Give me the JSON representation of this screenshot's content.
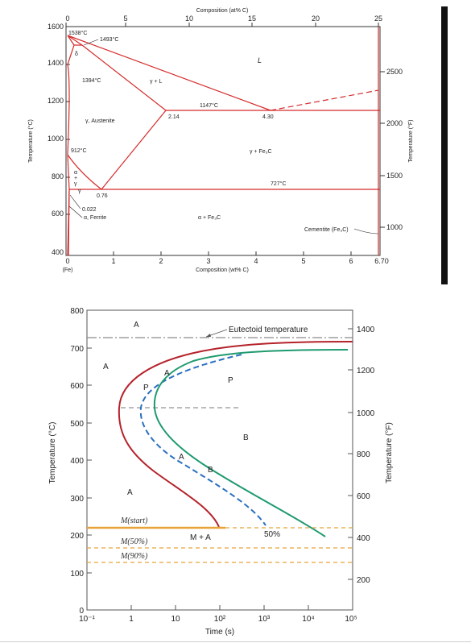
{
  "phase_diagram": {
    "top_axis_title": "Composition (at% C)",
    "top_ticks": [
      "0",
      "5",
      "10",
      "15",
      "20",
      "25"
    ],
    "bottom_axis_title": "Composition (wt% C)",
    "bottom_ticks": [
      "0",
      "1",
      "2",
      "3",
      "4",
      "5",
      "6",
      "6.70"
    ],
    "fe_label": "(Fe)",
    "left_axis_title": "Temperature (°C)",
    "left_ticks": [
      "1600",
      "1400",
      "1200",
      "1000",
      "800",
      "600",
      "400"
    ],
    "right_axis_title": "Temperature (°F)",
    "right_ticks": [
      "2500",
      "2000",
      "1500",
      "1000"
    ],
    "temp_labels": {
      "t1538": "1538°C",
      "t1493": "1493°C",
      "t1394": "1394°C",
      "t1147": "1147°C",
      "t912": "912°C",
      "t727": "727°C"
    },
    "comp_labels": {
      "c214": "2.14",
      "c430": "4.30",
      "c076": "0.76",
      "c0022": "0.022"
    },
    "region_labels": {
      "liquid": "L",
      "delta": "δ",
      "gamma_liquid": "γ + L",
      "austenite": "γ, Austenite",
      "gamma_cementite": "γ + Fe₃C",
      "alpha_gamma_a": "α",
      "alpha_gamma_plus": "+",
      "alpha_gamma_g": "γ",
      "gamma_small": "γ",
      "ferrite": "α, Ferrite",
      "alpha_cementite": "α + Fe₃C",
      "cementite": "Cementite (Fe₃C)"
    },
    "colors": {
      "line": "#d62a2a",
      "axis": "#333333"
    }
  },
  "ttt_diagram": {
    "left_axis_title": "Temperature (°C)",
    "left_ticks": [
      "800",
      "700",
      "600",
      "500",
      "400",
      "300",
      "200",
      "100",
      "0"
    ],
    "right_axis_title": "Temperature (°F)",
    "right_ticks": [
      "1400",
      "1200",
      "1000",
      "800",
      "600",
      "400",
      "200"
    ],
    "x_axis_title": "Time (s)",
    "x_ticks": [
      "10⁻¹",
      "1",
      "10",
      "10²",
      "10³",
      "10⁴",
      "10⁵"
    ],
    "eutectoid_label": "Eutectoid temperature",
    "region_labels": {
      "a_top": "A",
      "a_left": "A",
      "a_lower": "A",
      "p": "P",
      "b": "B",
      "a_curve": "A",
      "p_curve": "P",
      "a_b_a": "A",
      "a_b_b": "B",
      "m_a": "M + A"
    },
    "m_labels": {
      "m_start": "M(start)",
      "m50": "M(50%)",
      "m90": "M(90%)"
    },
    "pct_label": "50%",
    "colors": {
      "start_curve": "#b5222a",
      "finish_curve": "#1e9a6e",
      "half_curve": "#2a6fc0",
      "m_lines": "#e8a33a",
      "eutectoid": "#8a8a8a"
    }
  }
}
